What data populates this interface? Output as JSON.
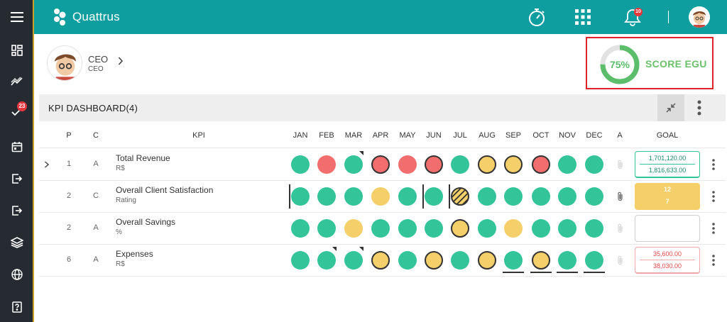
{
  "app": {
    "brand": "Quattrus"
  },
  "sidebar": {
    "items": [
      {
        "icon": "menu-icon"
      },
      {
        "icon": "dashboard-icon"
      },
      {
        "icon": "trend-icon"
      },
      {
        "icon": "tasks-check-icon",
        "badge": "23"
      },
      {
        "icon": "calendar-icon"
      },
      {
        "icon": "export-icon"
      },
      {
        "icon": "logout-icon"
      },
      {
        "icon": "layers-icon"
      },
      {
        "icon": "globe-icon"
      },
      {
        "icon": "help-book-icon"
      }
    ]
  },
  "header": {
    "notifications_badge": "10"
  },
  "profile": {
    "name": "CEO",
    "role": "CEO"
  },
  "score": {
    "percent": "75%",
    "value": 0.75,
    "label": "SCORE EGU",
    "color": "#5cbd6a"
  },
  "dashboard": {
    "title": "KPI DASHBOARD(4)",
    "columns": {
      "p": "P",
      "c": "C",
      "kpi": "KPI",
      "months": [
        "JAN",
        "FEB",
        "MAR",
        "APR",
        "MAY",
        "JUN",
        "JUL",
        "AUG",
        "SEP",
        "OCT",
        "NOV",
        "DEC"
      ],
      "a": "A",
      "goal": "GOAL"
    },
    "rows": [
      {
        "p": "1",
        "c": "A",
        "name": "Total Revenue",
        "unit": "R$",
        "months": [
          {
            "s": "g"
          },
          {
            "s": "r"
          },
          {
            "s": "g",
            "flag": true
          },
          {
            "s": "r",
            "ring": true
          },
          {
            "s": "r"
          },
          {
            "s": "r",
            "ring": true
          },
          {
            "s": "g"
          },
          {
            "s": "y",
            "ring": true
          },
          {
            "s": "y",
            "ring": true
          },
          {
            "s": "r",
            "ring": true
          },
          {
            "s": "g"
          },
          {
            "s": "g"
          }
        ],
        "goal": {
          "style": "green",
          "top": "1,701,120.00",
          "bottom": "1,816,633.00"
        }
      },
      {
        "p": "2",
        "c": "C",
        "name": "Overall Client Satisfaction",
        "unit": "Rating",
        "months": [
          {
            "s": "g",
            "vbar": true
          },
          {
            "s": "g"
          },
          {
            "s": "g"
          },
          {
            "s": "y"
          },
          {
            "s": "g"
          },
          {
            "s": "g",
            "vbar": true
          },
          {
            "s": "hatch",
            "vbar": true
          },
          {
            "s": "g"
          },
          {
            "s": "g"
          },
          {
            "s": "g"
          },
          {
            "s": "g"
          },
          {
            "s": "g"
          }
        ],
        "goal": {
          "style": "yellow",
          "top": "12",
          "bottom": "7"
        }
      },
      {
        "p": "2",
        "c": "A",
        "name": "Overall Savings",
        "unit": "%",
        "months": [
          {
            "s": "g"
          },
          {
            "s": "g"
          },
          {
            "s": "y"
          },
          {
            "s": "g"
          },
          {
            "s": "g"
          },
          {
            "s": "g"
          },
          {
            "s": "y",
            "ring": true
          },
          {
            "s": "g"
          },
          {
            "s": "y"
          },
          {
            "s": "g"
          },
          {
            "s": "g"
          },
          {
            "s": "g"
          }
        ],
        "goal": {
          "style": "empty",
          "top": "",
          "bottom": ""
        }
      },
      {
        "p": "6",
        "c": "A",
        "name": "Expenses",
        "unit": "R$",
        "months": [
          {
            "s": "g"
          },
          {
            "s": "g",
            "flag": true
          },
          {
            "s": "g",
            "flag": true
          },
          {
            "s": "y",
            "ring": true
          },
          {
            "s": "g"
          },
          {
            "s": "y",
            "ring": true
          },
          {
            "s": "g"
          },
          {
            "s": "y",
            "ring": true
          },
          {
            "s": "g",
            "uline": true
          },
          {
            "s": "y",
            "ring": true,
            "uline": true
          },
          {
            "s": "g",
            "uline": true
          },
          {
            "s": "g",
            "uline": true
          }
        ],
        "goal": {
          "style": "red",
          "top": "35,600.00",
          "bottom": "38,030.00"
        }
      }
    ]
  }
}
